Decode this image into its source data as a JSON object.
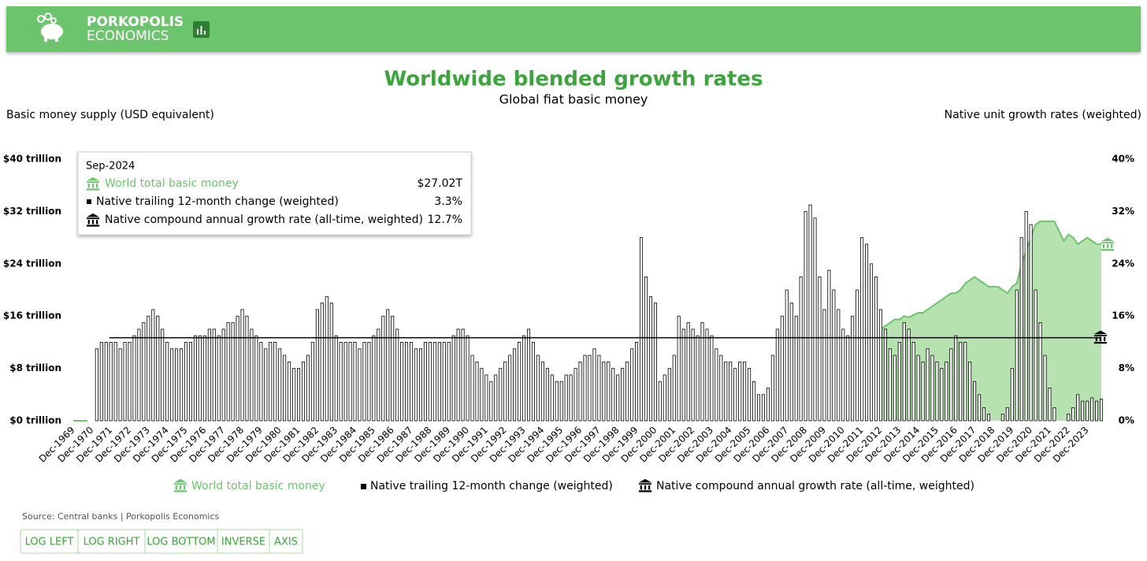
{
  "header": {
    "brand_top": "PORKOPOLIS",
    "brand_bottom": "ECONOMICS"
  },
  "chart_data": {
    "type": "combo",
    "title": "Worldwide blended growth rates",
    "subtitle": "Global fiat basic money",
    "ylabel": "Basic money supply (USD equivalent)",
    "y2label": "Native unit growth rates (weighted)",
    "ylim": [
      0,
      40
    ],
    "yticks": [
      {
        "value": 0,
        "label": "$0 trillion"
      },
      {
        "value": 8,
        "label": "$8 trillion"
      },
      {
        "value": 16,
        "label": "$16 trillion"
      },
      {
        "value": 24,
        "label": "$24 trillion"
      },
      {
        "value": 32,
        "label": "$32 trillion"
      },
      {
        "value": 40,
        "label": "$40 trillion"
      }
    ],
    "y2lim": [
      0,
      40
    ],
    "y2ticks": [
      {
        "value": 0,
        "label": "0%"
      },
      {
        "value": 8,
        "label": "8%"
      },
      {
        "value": 16,
        "label": "16%"
      },
      {
        "value": 24,
        "label": "24%"
      },
      {
        "value": 32,
        "label": "32%"
      },
      {
        "value": 40,
        "label": "40%"
      }
    ],
    "categories": [
      "Dec-1969",
      null,
      null,
      null,
      "Dec-1970",
      null,
      null,
      null,
      "Dec-1971",
      null,
      null,
      null,
      "Dec-1972",
      null,
      null,
      null,
      "Dec-1973",
      null,
      null,
      null,
      "Dec-1974",
      null,
      null,
      null,
      "Dec-1975",
      null,
      null,
      null,
      "Dec-1976",
      null,
      null,
      null,
      "Dec-1977",
      null,
      null,
      null,
      "Dec-1978",
      null,
      null,
      null,
      "Dec-1979",
      null,
      null,
      null,
      "Dec-1980",
      null,
      null,
      null,
      "Dec-1981",
      null,
      null,
      null,
      "Dec-1982",
      null,
      null,
      null,
      "Dec-1983",
      null,
      null,
      null,
      "Dec-1984",
      null,
      null,
      null,
      "Dec-1985",
      null,
      null,
      null,
      "Dec-1986",
      null,
      null,
      null,
      "Dec-1987",
      null,
      null,
      null,
      "Dec-1988",
      null,
      null,
      null,
      "Dec-1989",
      null,
      null,
      null,
      "Dec-1990",
      null,
      null,
      null,
      "Dec-1991",
      null,
      null,
      null,
      "Dec-1992",
      null,
      null,
      null,
      "Dec-1993",
      null,
      null,
      null,
      "Dec-1994",
      null,
      null,
      null,
      "Dec-1995",
      null,
      null,
      null,
      "Dec-1996",
      null,
      null,
      null,
      "Dec-1997",
      null,
      null,
      null,
      "Dec-1998",
      null,
      null,
      null,
      "Dec-1999",
      null,
      null,
      null,
      "Dec-2000",
      null,
      null,
      null,
      "Dec-2001",
      null,
      null,
      null,
      "Dec-2002",
      null,
      null,
      null,
      "Dec-2003",
      null,
      null,
      null,
      "Dec-2004",
      null,
      null,
      null,
      "Dec-2005",
      null,
      null,
      null,
      "Dec-2006",
      null,
      null,
      null,
      "Dec-2007",
      null,
      null,
      null,
      "Dec-2008",
      null,
      null,
      null,
      "Dec-2009",
      null,
      null,
      null,
      "Dec-2010",
      null,
      null,
      null,
      "Dec-2011",
      null,
      null,
      null,
      "Dec-2012",
      null,
      null,
      null,
      "Dec-2013",
      null,
      null,
      null,
      "Dec-2014",
      null,
      null,
      null,
      "Dec-2015",
      null,
      null,
      null,
      "Dec-2016",
      null,
      null,
      null,
      "Dec-2017",
      null,
      null,
      null,
      "Dec-2018",
      null,
      null,
      null,
      "Dec-2019",
      null,
      null,
      null,
      "Dec-2020",
      null,
      null,
      null,
      "Dec-2021",
      null,
      null,
      null,
      "Dec-2022",
      null,
      null,
      null,
      "Dec-2023",
      null,
      null,
      null
    ],
    "series": [
      {
        "name": "World total basic money",
        "type": "area",
        "axis": "y",
        "color": "#6cc46c",
        "fill": "#b5e2ae",
        "values": [
          0,
          0,
          0,
          0,
          null,
          null,
          null,
          null,
          null,
          null,
          null,
          null,
          null,
          null,
          null,
          null,
          null,
          null,
          null,
          null,
          null,
          null,
          null,
          null,
          null,
          null,
          null,
          null,
          null,
          null,
          null,
          null,
          null,
          null,
          null,
          null,
          null,
          null,
          null,
          null,
          null,
          null,
          null,
          null,
          null,
          null,
          null,
          null,
          null,
          null,
          null,
          null,
          null,
          null,
          null,
          null,
          null,
          null,
          null,
          null,
          null,
          null,
          null,
          null,
          null,
          null,
          null,
          null,
          null,
          null,
          null,
          null,
          null,
          null,
          null,
          null,
          null,
          null,
          null,
          null,
          null,
          null,
          null,
          null,
          null,
          null,
          null,
          null,
          null,
          null,
          null,
          null,
          null,
          null,
          null,
          null,
          null,
          null,
          null,
          null,
          null,
          null,
          null,
          null,
          null,
          null,
          null,
          null,
          null,
          null,
          null,
          null,
          null,
          null,
          null,
          null,
          null,
          null,
          null,
          null,
          null,
          null,
          null,
          null,
          null,
          null,
          null,
          null,
          null,
          null,
          null,
          null,
          null,
          null,
          null,
          null,
          null,
          null,
          null,
          null,
          null,
          null,
          null,
          null,
          null,
          null,
          null,
          null,
          null,
          null,
          null,
          null,
          null,
          null,
          null,
          null,
          null,
          null,
          null,
          null,
          null,
          null,
          null,
          null,
          null,
          null,
          null,
          null,
          null,
          null,
          null,
          null,
          14,
          14.5,
          15,
          15.5,
          15.5,
          16,
          15.8,
          16.2,
          16.5,
          16.5,
          17,
          17.5,
          18,
          18.5,
          19,
          19.5,
          19.5,
          20,
          21,
          21.5,
          22,
          21.5,
          21,
          20.5,
          20.5,
          20.5,
          20,
          19.5,
          20.5,
          21,
          24,
          26,
          28,
          30,
          30.5,
          30.5,
          30.5,
          30.5,
          29,
          27.5,
          28.5,
          28,
          27,
          27.5,
          28,
          27.5,
          27,
          27.02
        ]
      },
      {
        "name": "Native trailing 12-month change (weighted)",
        "type": "bar",
        "axis": "y2",
        "color": "#000000",
        "values": [
          null,
          null,
          null,
          null,
          null,
          11,
          12,
          12,
          12,
          12,
          11,
          12,
          12,
          13,
          14,
          15,
          16,
          17,
          16,
          14,
          12,
          11,
          11,
          11,
          12,
          12,
          13,
          13,
          13,
          14,
          14,
          13,
          14,
          15,
          15,
          16,
          17,
          16,
          14,
          13,
          12,
          11,
          12,
          12,
          11,
          10,
          9,
          8,
          8,
          9,
          10,
          12,
          17,
          18,
          19,
          18,
          13,
          12,
          12,
          12,
          12,
          11,
          12,
          12,
          13,
          14,
          16,
          17,
          16,
          14,
          12,
          12,
          12,
          11,
          11,
          12,
          12,
          12,
          12,
          12,
          12,
          13,
          14,
          14,
          13,
          10,
          9,
          8,
          7,
          6,
          7,
          8,
          9,
          10,
          11,
          12,
          13,
          14,
          12,
          10,
          9,
          8,
          7,
          6,
          6,
          7,
          7,
          8,
          9,
          10,
          10,
          11,
          10,
          9,
          9,
          8,
          7,
          8,
          9,
          11,
          12,
          28,
          22,
          19,
          18,
          6,
          7,
          8,
          10,
          16,
          14,
          15,
          14,
          13,
          15,
          14,
          13,
          11,
          10,
          9,
          9,
          8,
          9,
          9,
          8,
          6,
          4,
          4,
          5,
          10,
          14,
          16,
          20,
          18,
          16,
          22,
          32,
          33,
          31,
          22,
          17,
          23,
          20,
          17,
          14,
          13,
          16,
          20,
          28,
          27,
          24,
          22,
          17,
          14,
          11,
          10,
          12,
          15,
          14,
          12,
          10,
          9,
          11,
          10,
          9,
          8,
          9,
          11,
          13,
          12,
          12,
          9,
          6,
          4,
          2,
          1,
          0,
          0,
          1,
          2,
          8,
          20,
          28,
          32,
          30,
          20,
          15,
          10,
          5,
          2,
          0,
          0,
          1,
          2,
          4,
          3,
          3,
          3.5,
          3,
          3.3
        ]
      }
    ],
    "reference_line": {
      "name": "Native compound annual growth rate (all-time, weighted)",
      "axis": "y2",
      "value": 12.7,
      "color": "#000000"
    },
    "tooltip": {
      "date": "Sep-2024",
      "rows": [
        {
          "name": "World total basic money",
          "value": "$27.02T"
        },
        {
          "name": "Native trailing 12-month change (weighted)",
          "value": "3.3%"
        },
        {
          "name": "Native compound annual growth rate (all-time, weighted)",
          "value": "12.7%"
        }
      ]
    },
    "source": "Source: Central banks | Porkopolis Economics"
  },
  "buttons": [
    "LOG LEFT",
    "LOG RIGHT",
    "LOG BOTTOM",
    "INVERSE",
    "AXIS"
  ]
}
